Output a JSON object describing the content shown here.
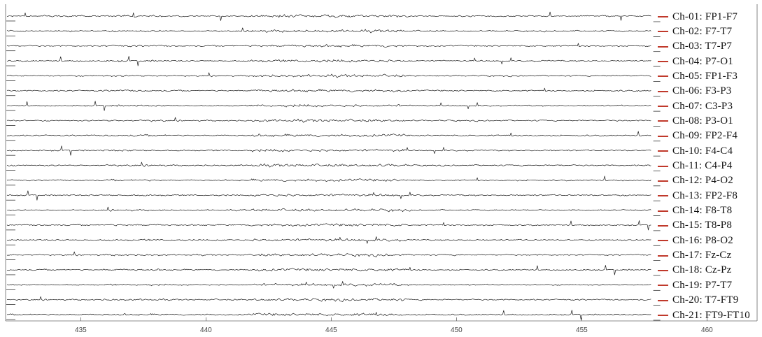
{
  "chart_data": {
    "type": "line",
    "title": "",
    "xlabel": "",
    "ylabel": "",
    "xlim": [
      432,
      462
    ],
    "xticks": [
      435,
      440,
      445,
      450,
      455,
      460
    ],
    "trace_end_x": 457.8,
    "grid": false,
    "legend_placement": "right",
    "trace_color": "#1a1a1a",
    "legend_color": "#c0392b",
    "axis_color": "#666666",
    "series": [
      {
        "name": "Ch-01: FP1-F7"
      },
      {
        "name": "Ch-02: F7-T7"
      },
      {
        "name": "Ch-03: T7-P7"
      },
      {
        "name": "Ch-04: P7-O1"
      },
      {
        "name": "Ch-05: FP1-F3"
      },
      {
        "name": "Ch-06: F3-P3"
      },
      {
        "name": "Ch-07: C3-P3"
      },
      {
        "name": "Ch-08: P3-O1"
      },
      {
        "name": "Ch-09: FP2-F4"
      },
      {
        "name": "Ch-10: F4-C4"
      },
      {
        "name": "Ch-11: C4-P4"
      },
      {
        "name": "Ch-12: P4-O2"
      },
      {
        "name": "Ch-13: FP2-F8"
      },
      {
        "name": "Ch-14: F8-T8"
      },
      {
        "name": "Ch-15: T8-P8"
      },
      {
        "name": "Ch-16: P8-O2"
      },
      {
        "name": "Ch-17: Fz-Cz"
      },
      {
        "name": "Ch-18: Cz-Pz"
      },
      {
        "name": "Ch-19: P7-T7"
      },
      {
        "name": "Ch-20: T7-FT9"
      },
      {
        "name": "Ch-21: FT9-FT10"
      }
    ]
  }
}
